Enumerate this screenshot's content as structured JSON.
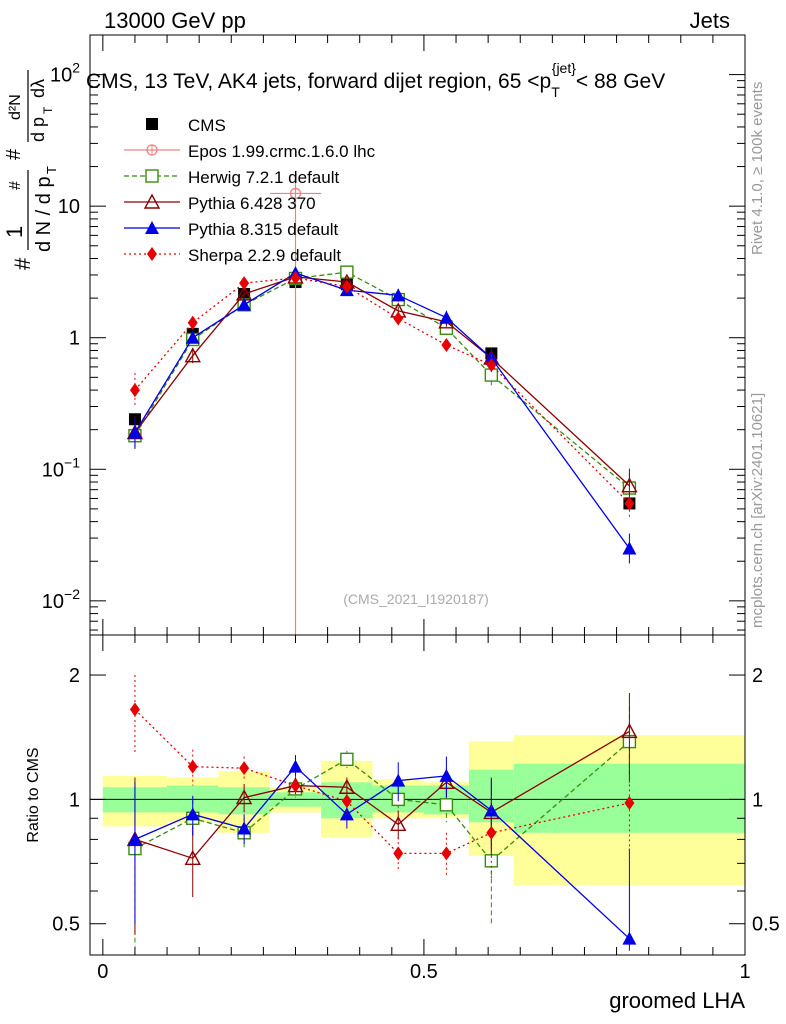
{
  "header": {
    "left": "13000 GeV pp",
    "right": "Jets"
  },
  "side_labels": {
    "rivet": "Rivet 4.1.0, ≥ 100k events",
    "mcplots": "mcplots.cern.ch [arXiv:2401.10621]"
  },
  "chart_data": {
    "type": "line",
    "title": "CMS, 13 TeV, AK4 jets, forward dijet region, 65 <p_T^{jet}< 88 GeV",
    "title_parts": {
      "before": "CMS, 13 TeV, AK4 jets, forward dijet region, 65 <p",
      "sub": "T",
      "sup": "{jet}",
      "after": "< 88 GeV"
    },
    "analysis_tag": "(CMS_2021_I1920187)",
    "xlabel": "groomed LHA",
    "ylabel_parts": {
      "hash1": "#",
      "one": "1",
      "hash2": "#",
      "dN": "d N / d p",
      "T": "T",
      "hash3": "#",
      "d2N": "d²N",
      "dpT": "d p",
      "T2": "T",
      "dlambda": "dλ"
    },
    "ratio_ylabel": "Ratio to CMS",
    "xlim": [
      -0.02,
      1.0
    ],
    "ylim": [
      0.0055,
      200
    ],
    "yscale": "log",
    "ratio_ylim": [
      0.42,
      2.5
    ],
    "ratio_yscale": "log",
    "x_ticks": [
      0,
      0.5,
      1
    ],
    "x_tick_labels": [
      "0",
      "0.5",
      "1"
    ],
    "y_ticks": [
      0.01,
      0.1,
      1,
      10,
      100
    ],
    "y_tick_labels": [
      {
        "base": "10",
        "exp": "−2"
      },
      {
        "base": "10",
        "exp": "−1"
      },
      {
        "base": "1",
        "exp": ""
      },
      {
        "base": "10",
        "exp": ""
      },
      {
        "base": "10",
        "exp": "2"
      }
    ],
    "ratio_ticks": [
      0.5,
      1,
      2
    ],
    "ratio_tick_labels": [
      "0.5",
      "1",
      "2"
    ],
    "bins": [
      {
        "lo": 0.0,
        "hi": 0.1,
        "x": 0.05
      },
      {
        "lo": 0.1,
        "hi": 0.18,
        "x": 0.14
      },
      {
        "lo": 0.18,
        "hi": 0.26,
        "x": 0.22
      },
      {
        "lo": 0.26,
        "hi": 0.34,
        "x": 0.3
      },
      {
        "lo": 0.34,
        "hi": 0.42,
        "x": 0.38
      },
      {
        "lo": 0.42,
        "hi": 0.5,
        "x": 0.46
      },
      {
        "lo": 0.5,
        "hi": 0.57,
        "x": 0.535
      },
      {
        "lo": 0.57,
        "hi": 0.64,
        "x": 0.605
      },
      {
        "lo": 0.64,
        "hi": 1.0,
        "x": 0.82
      }
    ],
    "data_series": {
      "name": "CMS",
      "color": "#000000",
      "values": [
        0.24,
        1.07,
        2.15,
        2.65,
        2.55,
        1.95,
        1.22,
        0.76,
        0.055
      ],
      "band_inner": [
        [
          0.93,
          1.07
        ],
        [
          0.93,
          1.08
        ],
        [
          0.92,
          1.07
        ],
        [
          0.96,
          1.04
        ],
        [
          0.9,
          1.1
        ],
        [
          0.93,
          1.08
        ],
        [
          0.92,
          1.08
        ],
        [
          0.88,
          1.18
        ],
        [
          0.83,
          1.22
        ]
      ],
      "band_outer": [
        [
          0.86,
          1.14
        ],
        [
          0.88,
          1.13
        ],
        [
          0.83,
          1.17
        ],
        [
          0.93,
          1.07
        ],
        [
          0.81,
          1.24
        ],
        [
          0.9,
          1.12
        ],
        [
          0.9,
          1.1
        ],
        [
          0.73,
          1.38
        ],
        [
          0.62,
          1.43
        ]
      ]
    },
    "series": [
      {
        "name": "Epos 1.99.crmc.1.6.0 lhc",
        "color": "#f08080",
        "marker": "circle-cross",
        "dash": "",
        "x": [
          0.3
        ],
        "values": [
          12.5
        ],
        "err_lo": [
          12.49
        ],
        "err_hi": [
          0
        ],
        "xerr": [
          0.04
        ]
      },
      {
        "name": "Herwig 7.2.1 default",
        "color": "#3a8a10",
        "marker": "open-square",
        "dash": "5,3",
        "x": [
          0.05,
          0.14,
          0.22,
          0.3,
          0.38,
          0.46,
          0.535,
          0.605,
          0.82
        ],
        "values": [
          0.18,
          0.97,
          1.78,
          2.82,
          3.15,
          1.95,
          1.18,
          0.52,
          0.072
        ],
        "ratio": [
          0.76,
          0.9,
          0.83,
          1.06,
          1.25,
          1.0,
          0.97,
          0.71,
          1.38
        ],
        "ratio_err": [
          0.32,
          0.1,
          0.07,
          0.05,
          0.06,
          0.07,
          0.09,
          0.21,
          0.3
        ]
      },
      {
        "name": "Pythia 6.428 370",
        "color": "#8b0000",
        "marker": "open-triangle",
        "dash": "",
        "x": [
          0.05,
          0.14,
          0.22,
          0.3,
          0.38,
          0.46,
          0.535,
          0.605,
          0.82
        ],
        "values": [
          0.19,
          0.73,
          2.15,
          2.9,
          2.65,
          1.6,
          1.32,
          0.7,
          0.075
        ],
        "ratio": [
          0.8,
          0.72,
          1.01,
          1.08,
          1.07,
          0.87,
          1.1,
          0.93,
          1.46
        ],
        "ratio_err": [
          0.33,
          0.14,
          0.08,
          0.05,
          0.06,
          0.07,
          0.09,
          0.2,
          0.35
        ]
      },
      {
        "name": "Pythia 8.315 default",
        "color": "#0000e6",
        "marker": "filled-triangle",
        "dash": "",
        "x": [
          0.05,
          0.14,
          0.22,
          0.3,
          0.38,
          0.46,
          0.535,
          0.605,
          0.82
        ],
        "values": [
          0.19,
          1.0,
          1.78,
          3.1,
          2.3,
          2.1,
          1.42,
          0.7,
          0.025
        ],
        "ratio": [
          0.8,
          0.92,
          0.85,
          1.2,
          0.92,
          1.11,
          1.14,
          0.94,
          0.46
        ],
        "ratio_err": [
          0.3,
          0.1,
          0.07,
          0.08,
          0.07,
          0.12,
          0.13,
          0.18,
          0.3
        ]
      },
      {
        "name": "Sherpa 2.2.9 default",
        "color": "#e60000",
        "marker": "filled-diamond",
        "dash": "2,3",
        "x": [
          0.05,
          0.14,
          0.22,
          0.3,
          0.38,
          0.46,
          0.535,
          0.605,
          0.82
        ],
        "values": [
          0.4,
          1.3,
          2.6,
          2.85,
          2.45,
          1.4,
          0.88,
          0.62,
          0.055
        ],
        "ratio": [
          1.65,
          1.2,
          1.19,
          1.08,
          0.99,
          0.74,
          0.74,
          0.83,
          0.98
        ],
        "ratio_err": [
          0.35,
          0.12,
          0.08,
          0.06,
          0.06,
          0.07,
          0.09,
          0.19,
          0.27
        ]
      }
    ],
    "legend_position": "top-left"
  }
}
